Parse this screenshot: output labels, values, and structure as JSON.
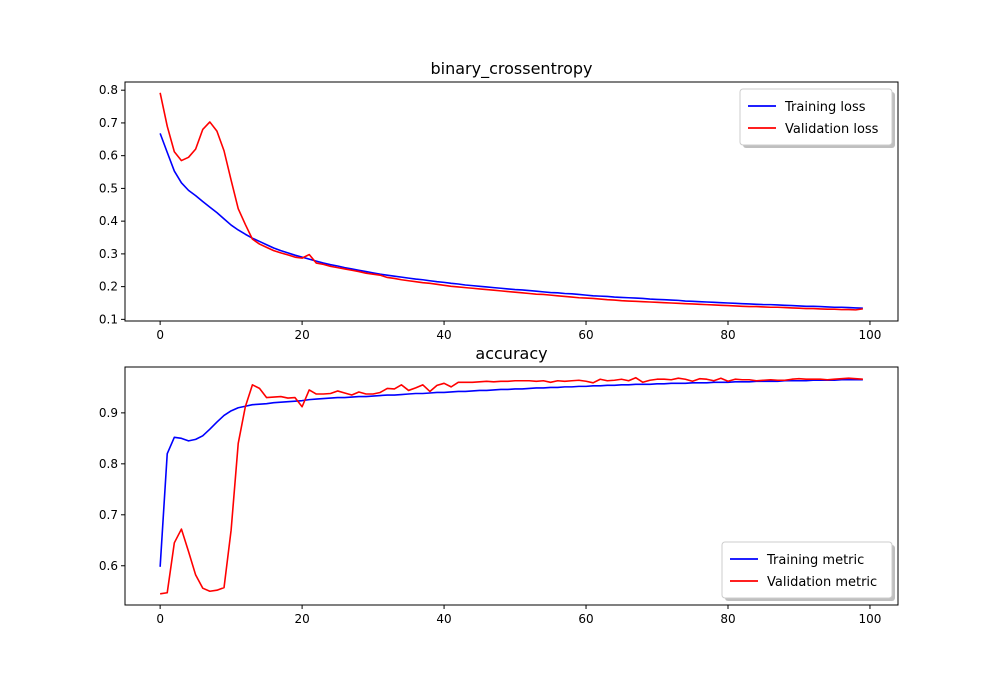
{
  "chart_data": [
    {
      "type": "line",
      "title": "binary_crossentropy",
      "xlabel": "",
      "ylabel": "",
      "xlim": [
        -4.95,
        103.95
      ],
      "ylim": [
        0.095,
        0.825
      ],
      "xticks": [
        0,
        20,
        40,
        60,
        80,
        100
      ],
      "xtick_labels": [
        "0",
        "20",
        "40",
        "60",
        "80",
        "100"
      ],
      "yticks": [
        0.1,
        0.2,
        0.3,
        0.4,
        0.5,
        0.6,
        0.7,
        0.8
      ],
      "ytick_labels": [
        "0.1",
        "0.2",
        "0.3",
        "0.4",
        "0.5",
        "0.6",
        "0.7",
        "0.8"
      ],
      "grid": false,
      "legend_position": "top-right",
      "series": [
        {
          "name": "Training loss",
          "color": "#0000ff",
          "values": [
            0.668,
            0.61,
            0.553,
            0.517,
            0.494,
            0.478,
            0.46,
            0.443,
            0.426,
            0.407,
            0.388,
            0.373,
            0.36,
            0.348,
            0.338,
            0.328,
            0.318,
            0.31,
            0.303,
            0.296,
            0.29,
            0.284,
            0.278,
            0.272,
            0.267,
            0.263,
            0.258,
            0.254,
            0.25,
            0.246,
            0.242,
            0.238,
            0.235,
            0.232,
            0.229,
            0.226,
            0.223,
            0.221,
            0.218,
            0.215,
            0.213,
            0.21,
            0.208,
            0.205,
            0.203,
            0.201,
            0.199,
            0.197,
            0.195,
            0.193,
            0.191,
            0.19,
            0.188,
            0.186,
            0.184,
            0.182,
            0.181,
            0.179,
            0.178,
            0.176,
            0.174,
            0.172,
            0.171,
            0.17,
            0.168,
            0.167,
            0.166,
            0.165,
            0.164,
            0.162,
            0.161,
            0.16,
            0.159,
            0.158,
            0.156,
            0.155,
            0.154,
            0.153,
            0.152,
            0.151,
            0.15,
            0.149,
            0.148,
            0.147,
            0.146,
            0.145,
            0.145,
            0.144,
            0.143,
            0.142,
            0.141,
            0.14,
            0.14,
            0.139,
            0.138,
            0.137,
            0.137,
            0.136,
            0.135,
            0.134
          ]
        },
        {
          "name": "Validation loss",
          "color": "#ff0000",
          "values": [
            0.792,
            0.69,
            0.612,
            0.585,
            0.595,
            0.62,
            0.68,
            0.703,
            0.675,
            0.615,
            0.525,
            0.438,
            0.39,
            0.345,
            0.33,
            0.32,
            0.31,
            0.303,
            0.297,
            0.29,
            0.287,
            0.298,
            0.272,
            0.268,
            0.262,
            0.258,
            0.254,
            0.25,
            0.246,
            0.241,
            0.238,
            0.235,
            0.228,
            0.225,
            0.221,
            0.218,
            0.215,
            0.212,
            0.21,
            0.207,
            0.204,
            0.201,
            0.199,
            0.197,
            0.195,
            0.193,
            0.191,
            0.189,
            0.187,
            0.185,
            0.183,
            0.181,
            0.179,
            0.177,
            0.176,
            0.174,
            0.172,
            0.17,
            0.168,
            0.166,
            0.165,
            0.164,
            0.162,
            0.16,
            0.159,
            0.157,
            0.156,
            0.155,
            0.154,
            0.153,
            0.152,
            0.151,
            0.15,
            0.149,
            0.148,
            0.147,
            0.146,
            0.145,
            0.144,
            0.143,
            0.142,
            0.141,
            0.14,
            0.139,
            0.139,
            0.138,
            0.137,
            0.137,
            0.136,
            0.135,
            0.134,
            0.133,
            0.133,
            0.132,
            0.131,
            0.131,
            0.13,
            0.13,
            0.129,
            0.132
          ]
        }
      ]
    },
    {
      "type": "line",
      "title": "accuracy",
      "xlabel": "",
      "ylabel": "",
      "xlim": [
        -4.95,
        103.95
      ],
      "ylim": [
        0.523,
        0.99
      ],
      "xticks": [
        0,
        20,
        40,
        60,
        80,
        100
      ],
      "xtick_labels": [
        "0",
        "20",
        "40",
        "60",
        "80",
        "100"
      ],
      "yticks": [
        0.6,
        0.7,
        0.8,
        0.9
      ],
      "ytick_labels": [
        "0.6",
        "0.7",
        "0.8",
        "0.9"
      ],
      "grid": false,
      "legend_position": "lower-right",
      "series": [
        {
          "name": "Training metric",
          "color": "#0000ff",
          "values": [
            0.598,
            0.82,
            0.852,
            0.85,
            0.845,
            0.848,
            0.855,
            0.868,
            0.882,
            0.895,
            0.904,
            0.91,
            0.913,
            0.916,
            0.917,
            0.918,
            0.92,
            0.921,
            0.922,
            0.923,
            0.924,
            0.926,
            0.927,
            0.928,
            0.929,
            0.93,
            0.93,
            0.931,
            0.932,
            0.932,
            0.933,
            0.934,
            0.935,
            0.935,
            0.936,
            0.937,
            0.938,
            0.938,
            0.939,
            0.94,
            0.94,
            0.941,
            0.942,
            0.942,
            0.943,
            0.944,
            0.944,
            0.945,
            0.946,
            0.946,
            0.947,
            0.947,
            0.948,
            0.949,
            0.949,
            0.95,
            0.95,
            0.951,
            0.951,
            0.952,
            0.952,
            0.953,
            0.953,
            0.954,
            0.954,
            0.955,
            0.955,
            0.956,
            0.956,
            0.956,
            0.957,
            0.957,
            0.958,
            0.958,
            0.958,
            0.959,
            0.959,
            0.959,
            0.96,
            0.96,
            0.96,
            0.961,
            0.961,
            0.961,
            0.962,
            0.962,
            0.962,
            0.962,
            0.963,
            0.963,
            0.963,
            0.963,
            0.964,
            0.964,
            0.964,
            0.964,
            0.965,
            0.965,
            0.965,
            0.965
          ]
        },
        {
          "name": "Validation metric",
          "color": "#ff0000",
          "values": [
            0.545,
            0.547,
            0.645,
            0.672,
            0.628,
            0.582,
            0.556,
            0.55,
            0.552,
            0.557,
            0.67,
            0.84,
            0.912,
            0.955,
            0.948,
            0.93,
            0.931,
            0.932,
            0.929,
            0.93,
            0.912,
            0.945,
            0.937,
            0.937,
            0.938,
            0.943,
            0.939,
            0.935,
            0.941,
            0.937,
            0.937,
            0.94,
            0.948,
            0.947,
            0.955,
            0.944,
            0.949,
            0.955,
            0.942,
            0.954,
            0.958,
            0.951,
            0.96,
            0.96,
            0.96,
            0.961,
            0.962,
            0.961,
            0.962,
            0.962,
            0.963,
            0.963,
            0.963,
            0.962,
            0.963,
            0.96,
            0.963,
            0.962,
            0.963,
            0.964,
            0.962,
            0.959,
            0.966,
            0.963,
            0.964,
            0.966,
            0.963,
            0.969,
            0.96,
            0.964,
            0.966,
            0.966,
            0.965,
            0.968,
            0.966,
            0.962,
            0.967,
            0.966,
            0.963,
            0.968,
            0.962,
            0.966,
            0.965,
            0.965,
            0.963,
            0.964,
            0.965,
            0.964,
            0.964,
            0.966,
            0.967,
            0.966,
            0.966,
            0.966,
            0.965,
            0.966,
            0.967,
            0.968,
            0.967,
            0.966
          ]
        }
      ]
    }
  ]
}
